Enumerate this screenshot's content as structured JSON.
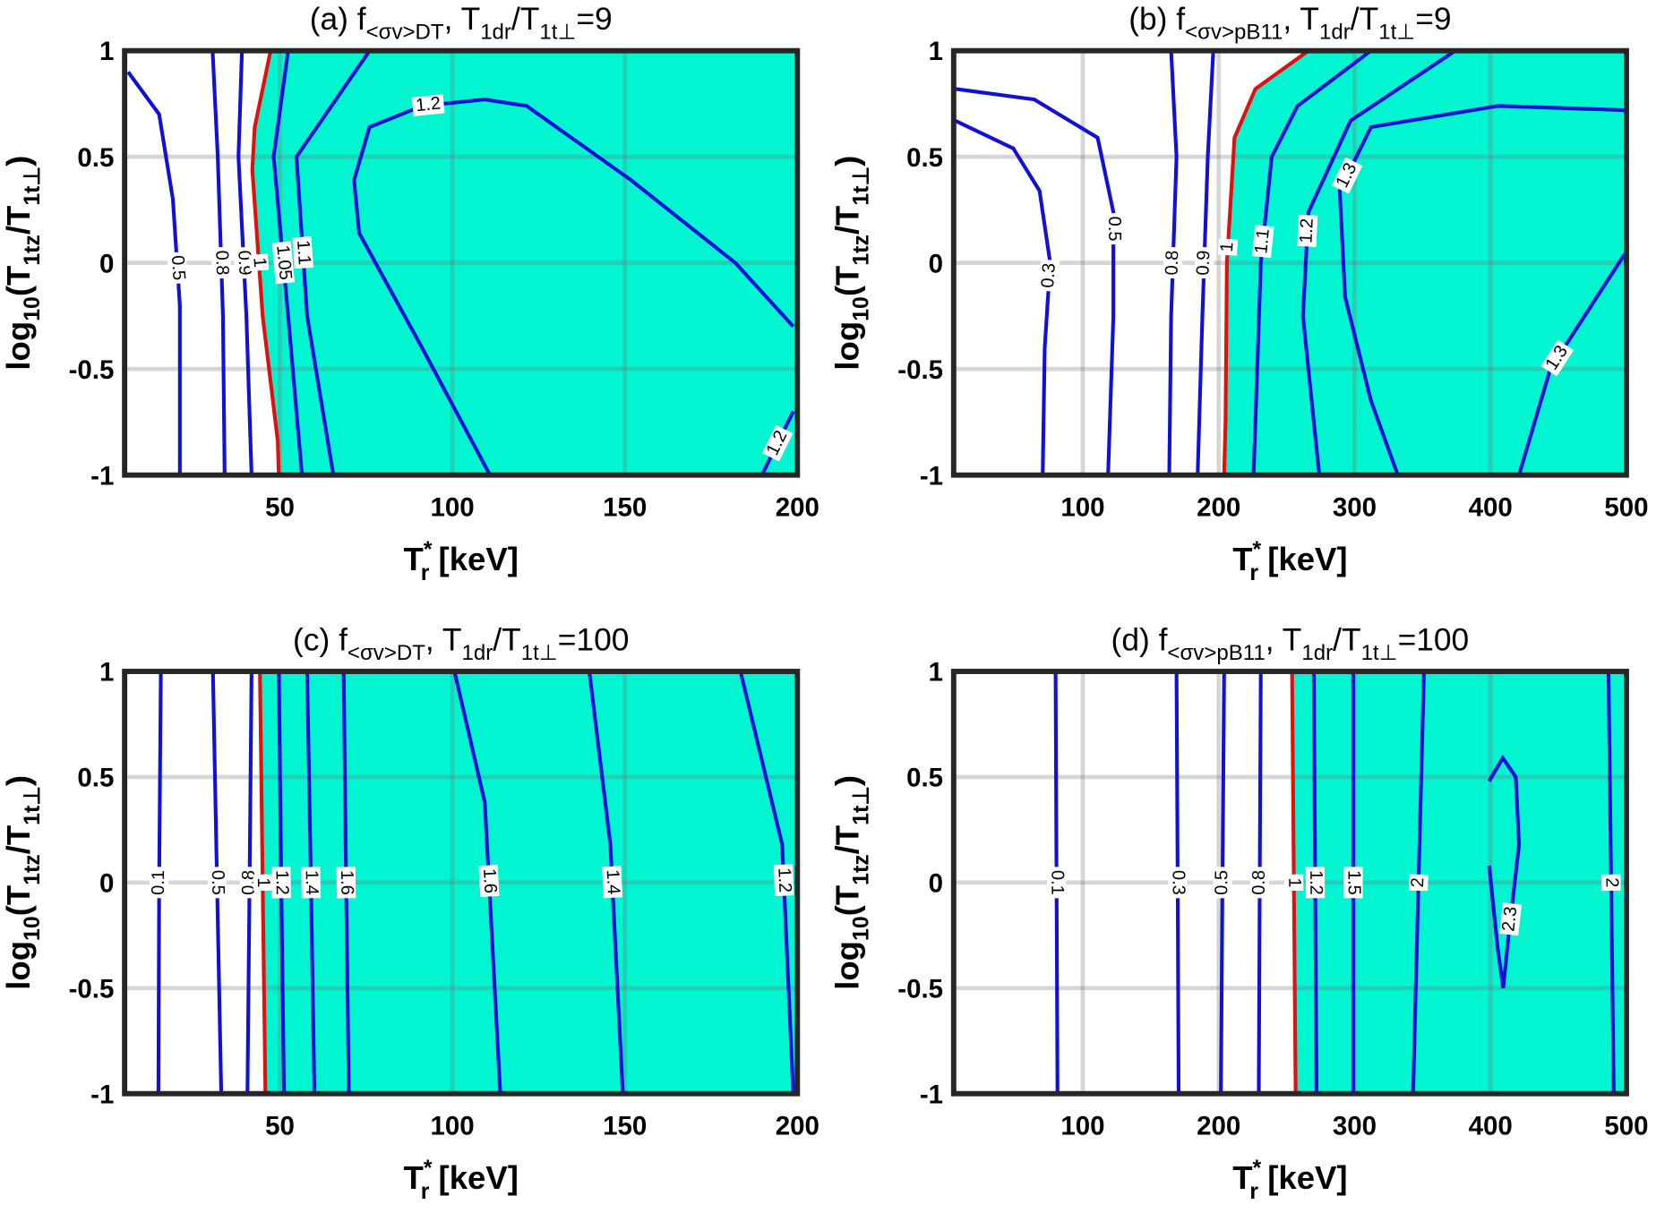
{
  "chart_data": [
    {
      "type": "contour",
      "title_parts": [
        {
          "text": "(a) f"
        },
        {
          "text": "<σv>DT",
          "script": "sub"
        },
        {
          "text": ", T"
        },
        {
          "text": "1dr",
          "script": "sub"
        },
        {
          "text": "/T"
        },
        {
          "text": "1t⊥",
          "script": "sub"
        },
        {
          "text": "=9"
        }
      ],
      "xlabel_parts": [
        {
          "text": "T"
        },
        {
          "text": "*",
          "script": "sup"
        },
        {
          "text": "r",
          "script": "sub"
        },
        {
          "text": " [keV]"
        }
      ],
      "ylabel_parts": [
        {
          "text": "log"
        },
        {
          "text": "10",
          "script": "sub"
        },
        {
          "text": "(T"
        },
        {
          "text": "1tz",
          "script": "sub"
        },
        {
          "text": "/T"
        },
        {
          "text": "1t⊥",
          "script": "sub"
        },
        {
          "text": ")"
        }
      ],
      "xlim": [
        5,
        200
      ],
      "xticks": [
        50,
        100,
        150,
        200
      ],
      "ylim": [
        -1,
        1
      ],
      "yticks": [
        -1,
        -0.5,
        0,
        0.5,
        1
      ],
      "grid": true,
      "contours": [
        {
          "level": 0.5,
          "color": "#1010d8",
          "x": [
            6,
            15,
            19,
            21,
            21
          ],
          "y": [
            0.9,
            0.7,
            0.3,
            -0.2,
            -1
          ]
        },
        {
          "level": 0.8,
          "color": "#1010d8",
          "x": [
            30.5,
            32,
            33.5,
            34
          ],
          "y": [
            1,
            0.5,
            -0.25,
            -1
          ]
        },
        {
          "level": 0.9,
          "color": "#1010d8",
          "x": [
            39,
            38,
            40.3,
            41.8
          ],
          "y": [
            1,
            0.5,
            -0.25,
            -1
          ]
        },
        {
          "level": 1,
          "color": "#e01010",
          "fill": "#00f5d0",
          "x": [
            47.3,
            42.7,
            42,
            45,
            49.4,
            49.7
          ],
          "y": [
            1,
            0.64,
            0.44,
            -0.25,
            -0.84,
            -1
          ]
        },
        {
          "level": 1.05,
          "color": "#1010d8",
          "x": [
            52.4,
            48.2,
            52.4,
            56.4
          ],
          "y": [
            1,
            0.5,
            -0.25,
            -1
          ]
        },
        {
          "level": 1.1,
          "color": "#1010d8",
          "x": [
            76,
            54.8,
            57.9,
            65.5
          ],
          "y": [
            1,
            0.5,
            -0.25,
            -1
          ]
        },
        {
          "level": 1.2,
          "color": "#1010d8",
          "x": [
            110.9,
            91.2,
            73,
            71.5,
            76,
            91.2,
            109.4,
            121.5,
            151.8,
            182,
            198.8,
            null,
            189.7,
            198.8
          ],
          "y": [
            -1,
            -0.4,
            0.14,
            0.39,
            0.64,
            0.74,
            0.77,
            0.74,
            0.39,
            0,
            -0.3,
            null,
            -1,
            -0.7
          ]
        }
      ]
    },
    {
      "type": "contour",
      "title_parts": [
        {
          "text": "(b) f"
        },
        {
          "text": "<σv>pB11",
          "script": "sub"
        },
        {
          "text": ", T"
        },
        {
          "text": "1dr",
          "script": "sub"
        },
        {
          "text": "/T"
        },
        {
          "text": "1t⊥",
          "script": "sub"
        },
        {
          "text": "=9"
        }
      ],
      "xlabel_parts": [
        {
          "text": "T"
        },
        {
          "text": "*",
          "script": "sup"
        },
        {
          "text": "r",
          "script": "sub"
        },
        {
          "text": " [keV]"
        }
      ],
      "ylabel_parts": [
        {
          "text": "log"
        },
        {
          "text": "10",
          "script": "sub"
        },
        {
          "text": "(T"
        },
        {
          "text": "1tz",
          "script": "sub"
        },
        {
          "text": "/T"
        },
        {
          "text": "1t⊥",
          "script": "sub"
        },
        {
          "text": ")"
        }
      ],
      "xlim": [
        5,
        500
      ],
      "xticks": [
        100,
        200,
        300,
        400,
        500
      ],
      "ylim": [
        -1,
        1
      ],
      "yticks": [
        -1,
        -0.5,
        0,
        0.5,
        1
      ],
      "grid": true,
      "contours": [
        {
          "level": 0.3,
          "color": "#1010d8",
          "x": [
            6.2,
            48.8,
            68.2,
            76,
            72,
            70.5
          ],
          "y": [
            0.67,
            0.54,
            0.34,
            0,
            -0.4,
            -1
          ]
        },
        {
          "level": 0.5,
          "color": "#1010d8",
          "x": [
            6.2,
            64.3,
            110.9,
            122.5,
            122.5,
            118.6
          ],
          "y": [
            0.82,
            0.77,
            0.59,
            0.24,
            -0.25,
            -1
          ]
        },
        {
          "level": 0.8,
          "color": "#1010d8",
          "x": [
            165,
            169,
            165,
            163.6
          ],
          "y": [
            1,
            0.5,
            -0.25,
            -1
          ]
        },
        {
          "level": 0.9,
          "color": "#1010d8",
          "x": [
            196,
            192,
            188,
            184.5
          ],
          "y": [
            1,
            0.5,
            -0.25,
            -1
          ]
        },
        {
          "level": 1,
          "color": "#e01010",
          "fill": "#00f5d0",
          "x": [
            266,
            227,
            211.6,
            206,
            205,
            204
          ],
          "y": [
            1,
            0.82,
            0.59,
            0,
            -0.75,
            -1
          ]
        },
        {
          "level": 1.1,
          "color": "#1010d8",
          "x": [
            312,
            258,
            239,
            231,
            227,
            225.6
          ],
          "y": [
            1,
            0.74,
            0.5,
            0,
            -0.75,
            -1
          ]
        },
        {
          "level": 1.2,
          "color": "#1010d8",
          "x": [
            374,
            297,
            266,
            262,
            270,
            274
          ],
          "y": [
            1,
            0.67,
            0.24,
            -0.25,
            -0.75,
            -1
          ]
        },
        {
          "level": 1.3,
          "color": "#1010d8",
          "x": [
            498.5,
            405.4,
            312,
            289,
            293,
            312,
            331.8,
            null,
            421,
            444,
            498.5
          ],
          "y": [
            0.72,
            0.74,
            0.64,
            0.34,
            -0.16,
            -0.65,
            -1,
            null,
            -1,
            -0.5,
            0.04
          ]
        }
      ]
    },
    {
      "type": "contour",
      "title_parts": [
        {
          "text": "(c) f"
        },
        {
          "text": "<σv>DT",
          "script": "sub"
        },
        {
          "text": ", T"
        },
        {
          "text": "1dr",
          "script": "sub"
        },
        {
          "text": "/T"
        },
        {
          "text": "1t⊥",
          "script": "sub"
        },
        {
          "text": "=100"
        }
      ],
      "xlabel_parts": [
        {
          "text": "T"
        },
        {
          "text": "*",
          "script": "sup"
        },
        {
          "text": "r",
          "script": "sub"
        },
        {
          "text": " [keV]"
        }
      ],
      "ylabel_parts": [
        {
          "text": "log"
        },
        {
          "text": "10",
          "script": "sub"
        },
        {
          "text": "(T"
        },
        {
          "text": "1tz",
          "script": "sub"
        },
        {
          "text": "/T"
        },
        {
          "text": "1t⊥",
          "script": "sub"
        },
        {
          "text": ")"
        }
      ],
      "xlim": [
        5,
        200
      ],
      "xticks": [
        50,
        100,
        150,
        200
      ],
      "ylim": [
        -1,
        1
      ],
      "yticks": [
        -1,
        -0.5,
        0,
        0.5,
        1
      ],
      "grid": true,
      "contours": [
        {
          "level": 0.1,
          "color": "#1010d8",
          "x": [
            15.5,
            15,
            14.8
          ],
          "y": [
            1,
            0,
            -1
          ]
        },
        {
          "level": 0.5,
          "color": "#1010d8",
          "x": [
            30.6,
            31.8,
            33
          ],
          "y": [
            1,
            0,
            -1
          ]
        },
        {
          "level": 0.8,
          "color": "#1010d8",
          "x": [
            41.8,
            41.2,
            40.6
          ],
          "y": [
            1,
            0,
            -1
          ]
        },
        {
          "level": 1,
          "color": "#e01010",
          "fill": "#00f5d0",
          "x": [
            44.2,
            45,
            45.8
          ],
          "y": [
            1,
            0,
            -1
          ]
        },
        {
          "level": 1.2,
          "color": "#1010d8",
          "x": [
            49.7,
            50.4,
            51.2
          ],
          "y": [
            1,
            0,
            -1
          ]
        },
        {
          "level": 1.4,
          "color": "#1010d8",
          "x": [
            57.9,
            59,
            60
          ],
          "y": [
            1,
            0,
            -1
          ]
        },
        {
          "level": 1.6,
          "color": "#1010d8",
          "x": [
            68.5,
            69.2,
            70,
            null,
            100.6,
            109.4,
            113.9
          ],
          "y": [
            1,
            0,
            -1,
            null,
            1,
            0.38,
            -1
          ]
        },
        {
          "level": 1.4,
          "color": "#1010d8",
          "x": [
            139.7,
            145.8,
            149.4
          ],
          "y": [
            1,
            0.18,
            -1
          ]
        },
        {
          "level": 1.2,
          "color": "#1010d8",
          "x": [
            183.5,
            195.6,
            198.8
          ],
          "y": [
            1,
            0.18,
            -1
          ]
        }
      ]
    },
    {
      "type": "contour",
      "title_parts": [
        {
          "text": "(d) f"
        },
        {
          "text": "<σv>pB11",
          "script": "sub"
        },
        {
          "text": ", T"
        },
        {
          "text": "1dr",
          "script": "sub"
        },
        {
          "text": "/T"
        },
        {
          "text": "1t⊥",
          "script": "sub"
        },
        {
          "text": "=100"
        }
      ],
      "xlabel_parts": [
        {
          "text": "T"
        },
        {
          "text": "*",
          "script": "sup"
        },
        {
          "text": "r",
          "script": "sub"
        },
        {
          "text": " [keV]"
        }
      ],
      "ylabel_parts": [
        {
          "text": "log"
        },
        {
          "text": "10",
          "script": "sub"
        },
        {
          "text": "(T"
        },
        {
          "text": "1tz",
          "script": "sub"
        },
        {
          "text": "/T"
        },
        {
          "text": "1t⊥",
          "script": "sub"
        },
        {
          "text": ")"
        }
      ],
      "xlim": [
        5,
        500
      ],
      "xticks": [
        100,
        200,
        300,
        400,
        500
      ],
      "ylim": [
        -1,
        1
      ],
      "yticks": [
        -1,
        -0.5,
        0,
        0.5,
        1
      ],
      "grid": true,
      "contours": [
        {
          "level": 0.1,
          "color": "#1010d8",
          "x": [
            80,
            80.7,
            81.4
          ],
          "y": [
            1,
            0,
            -1
          ]
        },
        {
          "level": 0.3,
          "color": "#1010d8",
          "x": [
            169,
            169.8,
            170.5
          ],
          "y": [
            1,
            0,
            -1
          ]
        },
        {
          "level": 0.5,
          "color": "#1010d8",
          "x": [
            204,
            202.8,
            201.6
          ],
          "y": [
            1,
            0,
            -1
          ]
        },
        {
          "level": 0.8,
          "color": "#1010d8",
          "x": [
            231,
            230.2,
            229.5
          ],
          "y": [
            1,
            0,
            -1
          ]
        },
        {
          "level": 1,
          "color": "#e01010",
          "fill": "#00f5d0",
          "x": [
            254,
            255.3,
            256.6
          ],
          "y": [
            1,
            0,
            -1
          ]
        },
        {
          "level": 1.2,
          "color": "#1010d8",
          "x": [
            270,
            271,
            272
          ],
          "y": [
            1,
            0,
            -1
          ]
        },
        {
          "level": 1.5,
          "color": "#1010d8",
          "x": [
            299,
            299,
            299
          ],
          "y": [
            1,
            0,
            -1
          ]
        },
        {
          "level": 2,
          "color": "#1010d8",
          "x": [
            351,
            347,
            343,
            null,
            486.8,
            488.7,
            490.7
          ],
          "y": [
            1,
            0,
            -1,
            null,
            1,
            0,
            -1
          ]
        },
        {
          "level": 2.3,
          "color": "#1010d8",
          "x": [
            399,
            409,
            418.6,
            421,
            413,
            409.3,
            405.4,
            399
          ],
          "y": [
            0.48,
            0.59,
            0.5,
            0.18,
            -0.27,
            -0.5,
            -0.32,
            0.08
          ]
        }
      ]
    }
  ]
}
